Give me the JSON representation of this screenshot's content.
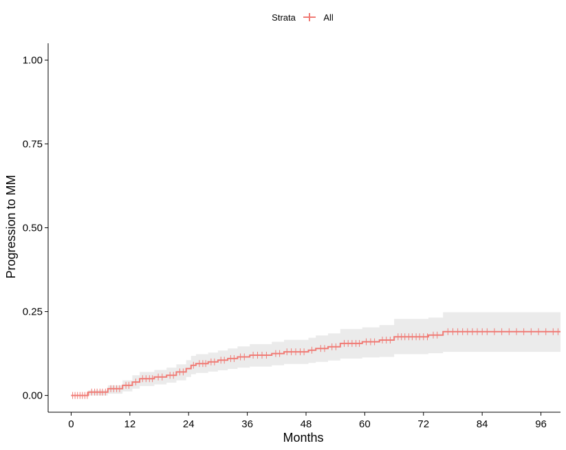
{
  "chart_data": {
    "type": "line",
    "subtype": "cumulative-incidence-step",
    "legend": {
      "title": "Strata",
      "entries": [
        "All"
      ],
      "placement": "top"
    },
    "xlabel": "Months",
    "ylabel": "Progression to MM",
    "xlim": [
      -4.7,
      100
    ],
    "ylim": [
      -0.05,
      1.05
    ],
    "x_ticks": [
      0,
      12,
      24,
      36,
      48,
      60,
      72,
      84,
      96
    ],
    "x_tick_labels": [
      "0",
      "12",
      "24",
      "36",
      "48",
      "60",
      "72",
      "84",
      "96"
    ],
    "y_ticks": [
      0,
      0.25,
      0.5,
      0.75,
      1
    ],
    "y_tick_labels": [
      "0.00",
      "0.25",
      "0.50",
      "0.75",
      "1.00"
    ],
    "colors": {
      "line": "#f07a74",
      "band": "#ebebeb",
      "axis": "#000000"
    },
    "series": [
      {
        "name": "All",
        "x": [
          0,
          3.5,
          7.5,
          10.5,
          12.5,
          14,
          17,
          19.5,
          21.5,
          23.5,
          24.5,
          25.5,
          28,
          30,
          32,
          34,
          36.5,
          41,
          43.5,
          48.5,
          50,
          52.5,
          55,
          59.5,
          63,
          66,
          73,
          76,
          100
        ],
        "y": [
          0,
          0.01,
          0.02,
          0.03,
          0.04,
          0.05,
          0.055,
          0.06,
          0.07,
          0.08,
          0.09,
          0.095,
          0.1,
          0.105,
          0.11,
          0.115,
          0.12,
          0.125,
          0.13,
          0.135,
          0.14,
          0.145,
          0.155,
          0.16,
          0.165,
          0.175,
          0.18,
          0.19,
          0.19
        ],
        "ci_lower": [
          0,
          0.0,
          0.005,
          0.012,
          0.02,
          0.028,
          0.033,
          0.038,
          0.045,
          0.055,
          0.063,
          0.067,
          0.071,
          0.075,
          0.079,
          0.083,
          0.086,
          0.09,
          0.094,
          0.097,
          0.1,
          0.104,
          0.11,
          0.113,
          0.115,
          0.123,
          0.126,
          0.13,
          0.13
        ],
        "ci_upper": [
          0,
          0.015,
          0.03,
          0.045,
          0.06,
          0.07,
          0.076,
          0.083,
          0.093,
          0.105,
          0.118,
          0.123,
          0.128,
          0.134,
          0.14,
          0.146,
          0.153,
          0.16,
          0.166,
          0.172,
          0.179,
          0.185,
          0.198,
          0.203,
          0.21,
          0.228,
          0.232,
          0.248,
          0.248
        ],
        "censor_times": [
          0.3,
          0.8,
          1.3,
          1.8,
          2.3,
          2.8,
          3.3,
          4.2,
          4.8,
          5.3,
          5.9,
          6.4,
          7.0,
          8.1,
          8.7,
          9.3,
          9.9,
          11.2,
          11.8,
          13.2,
          14.6,
          15.3,
          16.0,
          16.6,
          17.8,
          18.6,
          20.2,
          20.9,
          22.2,
          22.9,
          25.0,
          26.2,
          26.9,
          27.5,
          28.6,
          29.3,
          30.6,
          31.3,
          32.6,
          33.3,
          34.6,
          35.4,
          37.2,
          38.1,
          39.0,
          39.9,
          41.8,
          42.6,
          44.1,
          45.0,
          45.9,
          46.8,
          47.6,
          49.2,
          51.0,
          51.8,
          53.3,
          54.1,
          55.8,
          56.6,
          57.4,
          58.2,
          58.9,
          60.3,
          61.2,
          62.0,
          63.6,
          64.4,
          65.2,
          66.8,
          67.5,
          68.2,
          69.0,
          69.7,
          70.5,
          71.2,
          72.0,
          72.8,
          74.0,
          74.8,
          77.0,
          78.0,
          79.0,
          80.0,
          81.0,
          82.0,
          83.0,
          84.0,
          85.0,
          86.5,
          88.0,
          89.5,
          91.0,
          92.5,
          94.0,
          95.5,
          97.0,
          98.5,
          99.5
        ]
      }
    ]
  }
}
